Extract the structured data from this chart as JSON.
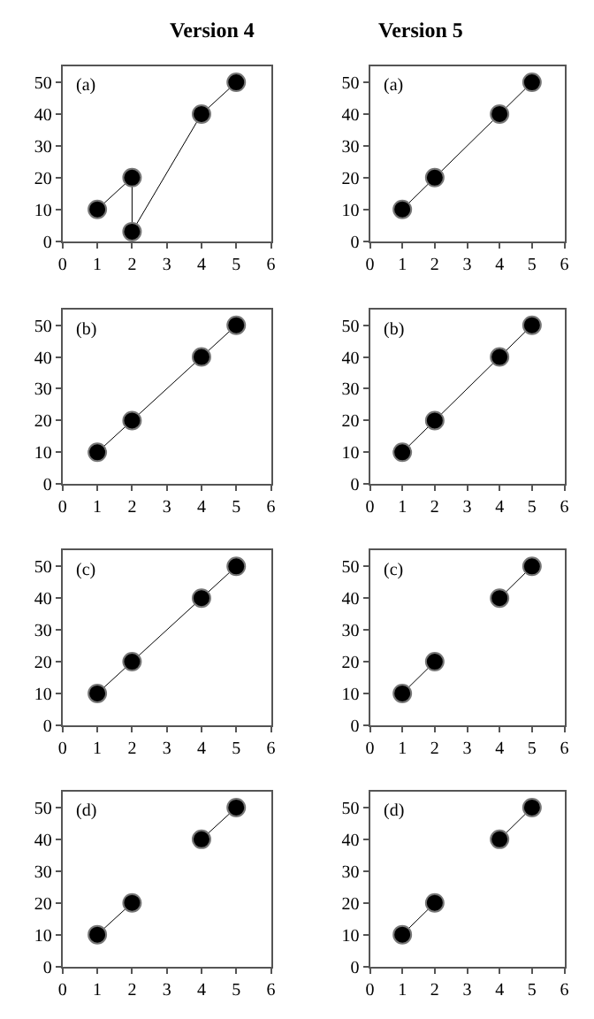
{
  "chart_data": [
    {
      "type": "line",
      "title": "Version 4",
      "x": [
        1,
        2,
        2,
        4,
        5
      ],
      "values": [
        10,
        20,
        3,
        40,
        50
      ],
      "color": "#000000",
      "marker": "circle",
      "xlim": [
        0,
        6
      ],
      "ylim": [
        0,
        55
      ],
      "xticks": [
        0,
        1,
        2,
        3,
        4,
        5,
        6
      ],
      "yticks": [
        0,
        10,
        20,
        30,
        40,
        50
      ],
      "annotations": [
        "(a)"
      ]
    },
    {
      "type": "line",
      "title": "Version 5",
      "x": [
        1,
        2,
        4,
        5
      ],
      "values": [
        10,
        20,
        40,
        50
      ],
      "color": "#000000",
      "marker": "circle",
      "xlim": [
        0,
        6
      ],
      "ylim": [
        0,
        55
      ],
      "xticks": [
        0,
        1,
        2,
        3,
        4,
        5,
        6
      ],
      "yticks": [
        0,
        10,
        20,
        30,
        40,
        50
      ],
      "annotations": [
        "(a)"
      ]
    },
    {
      "type": "line",
      "x": [
        1,
        2,
        4,
        5
      ],
      "values": [
        10,
        20,
        40,
        50
      ],
      "color": "#000000",
      "marker": "circle",
      "xlim": [
        0,
        6
      ],
      "ylim": [
        0,
        55
      ],
      "xticks": [
        0,
        1,
        2,
        3,
        4,
        5,
        6
      ],
      "yticks": [
        0,
        10,
        20,
        30,
        40,
        50
      ],
      "annotations": [
        "(b)"
      ]
    },
    {
      "type": "line",
      "x": [
        1,
        2,
        4,
        5
      ],
      "values": [
        10,
        20,
        40,
        50
      ],
      "color": "#000000",
      "marker": "circle",
      "xlim": [
        0,
        6
      ],
      "ylim": [
        0,
        55
      ],
      "xticks": [
        0,
        1,
        2,
        3,
        4,
        5,
        6
      ],
      "yticks": [
        0,
        10,
        20,
        30,
        40,
        50
      ],
      "annotations": [
        "(b)"
      ]
    },
    {
      "type": "line",
      "x": [
        1,
        2,
        4,
        5
      ],
      "values": [
        10,
        20,
        40,
        50
      ],
      "color": "#000000",
      "marker": "circle",
      "xlim": [
        0,
        6
      ],
      "ylim": [
        0,
        55
      ],
      "xticks": [
        0,
        1,
        2,
        3,
        4,
        5,
        6
      ],
      "yticks": [
        0,
        10,
        20,
        30,
        40,
        50
      ],
      "annotations": [
        "(c)"
      ]
    },
    {
      "type": "line",
      "x": [
        1,
        2,
        3,
        4,
        5
      ],
      "values": [
        10,
        20,
        null,
        40,
        50
      ],
      "color": "#000000",
      "marker": "circle",
      "xlim": [
        0,
        6
      ],
      "ylim": [
        0,
        55
      ],
      "xticks": [
        0,
        1,
        2,
        3,
        4,
        5,
        6
      ],
      "yticks": [
        0,
        10,
        20,
        30,
        40,
        50
      ],
      "annotations": [
        "(c)"
      ]
    },
    {
      "type": "line",
      "x": [
        1,
        2,
        3,
        4,
        5
      ],
      "values": [
        10,
        20,
        null,
        40,
        50
      ],
      "color": "#000000",
      "marker": "circle",
      "xlim": [
        0,
        6
      ],
      "ylim": [
        0,
        55
      ],
      "xticks": [
        0,
        1,
        2,
        3,
        4,
        5,
        6
      ],
      "yticks": [
        0,
        10,
        20,
        30,
        40,
        50
      ],
      "annotations": [
        "(d)"
      ]
    },
    {
      "type": "line",
      "x": [
        1,
        2,
        3,
        4,
        5
      ],
      "values": [
        10,
        20,
        null,
        40,
        50
      ],
      "color": "#000000",
      "marker": "circle",
      "xlim": [
        0,
        6
      ],
      "ylim": [
        0,
        55
      ],
      "xticks": [
        0,
        1,
        2,
        3,
        4,
        5,
        6
      ],
      "yticks": [
        0,
        10,
        20,
        30,
        40,
        50
      ],
      "annotations": [
        "(d)"
      ]
    }
  ]
}
